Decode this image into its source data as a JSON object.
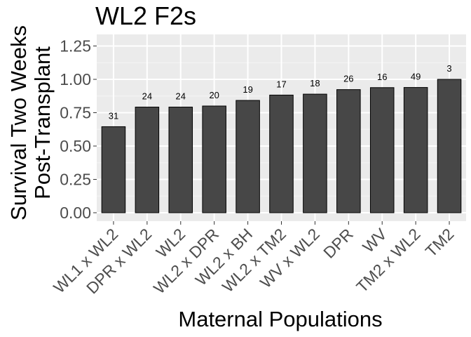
{
  "chart_data": {
    "type": "bar",
    "title": "WL2 F2s",
    "xlabel": "Maternal Populations",
    "ylabel_lines": [
      "Survival Two Weeks",
      "Post-Transplant"
    ],
    "ylim": [
      0,
      1.3
    ],
    "yticks": [
      0,
      0.25,
      0.5,
      0.75,
      1.0,
      1.25
    ],
    "ytick_labels": [
      "0.00",
      "0.25",
      "0.50",
      "0.75",
      "1.00",
      "1.25"
    ],
    "grid": true,
    "categories": [
      "WL1 x WL2",
      "DPR x WL2",
      "WL2",
      "WL2 x DPR",
      "WL2 x BH",
      "WL2 x TM2",
      "WV x WL2",
      "DPR",
      "WV",
      "TM2 x WL2",
      "TM2"
    ],
    "values": [
      0.645,
      0.792,
      0.792,
      0.8,
      0.842,
      0.882,
      0.889,
      0.923,
      0.938,
      0.939,
      1.0
    ],
    "data_labels": [
      "31",
      "24",
      "24",
      "20",
      "19",
      "17",
      "18",
      "26",
      "16",
      "49",
      "3"
    ],
    "colors": {
      "bar_fill": "#474747",
      "bar_stroke": "#000000",
      "panel_bg": "#ebebeb",
      "grid_major": "#ffffff",
      "grid_minor": "#f5f5f5",
      "tick_text": "#4d4d4d"
    }
  }
}
